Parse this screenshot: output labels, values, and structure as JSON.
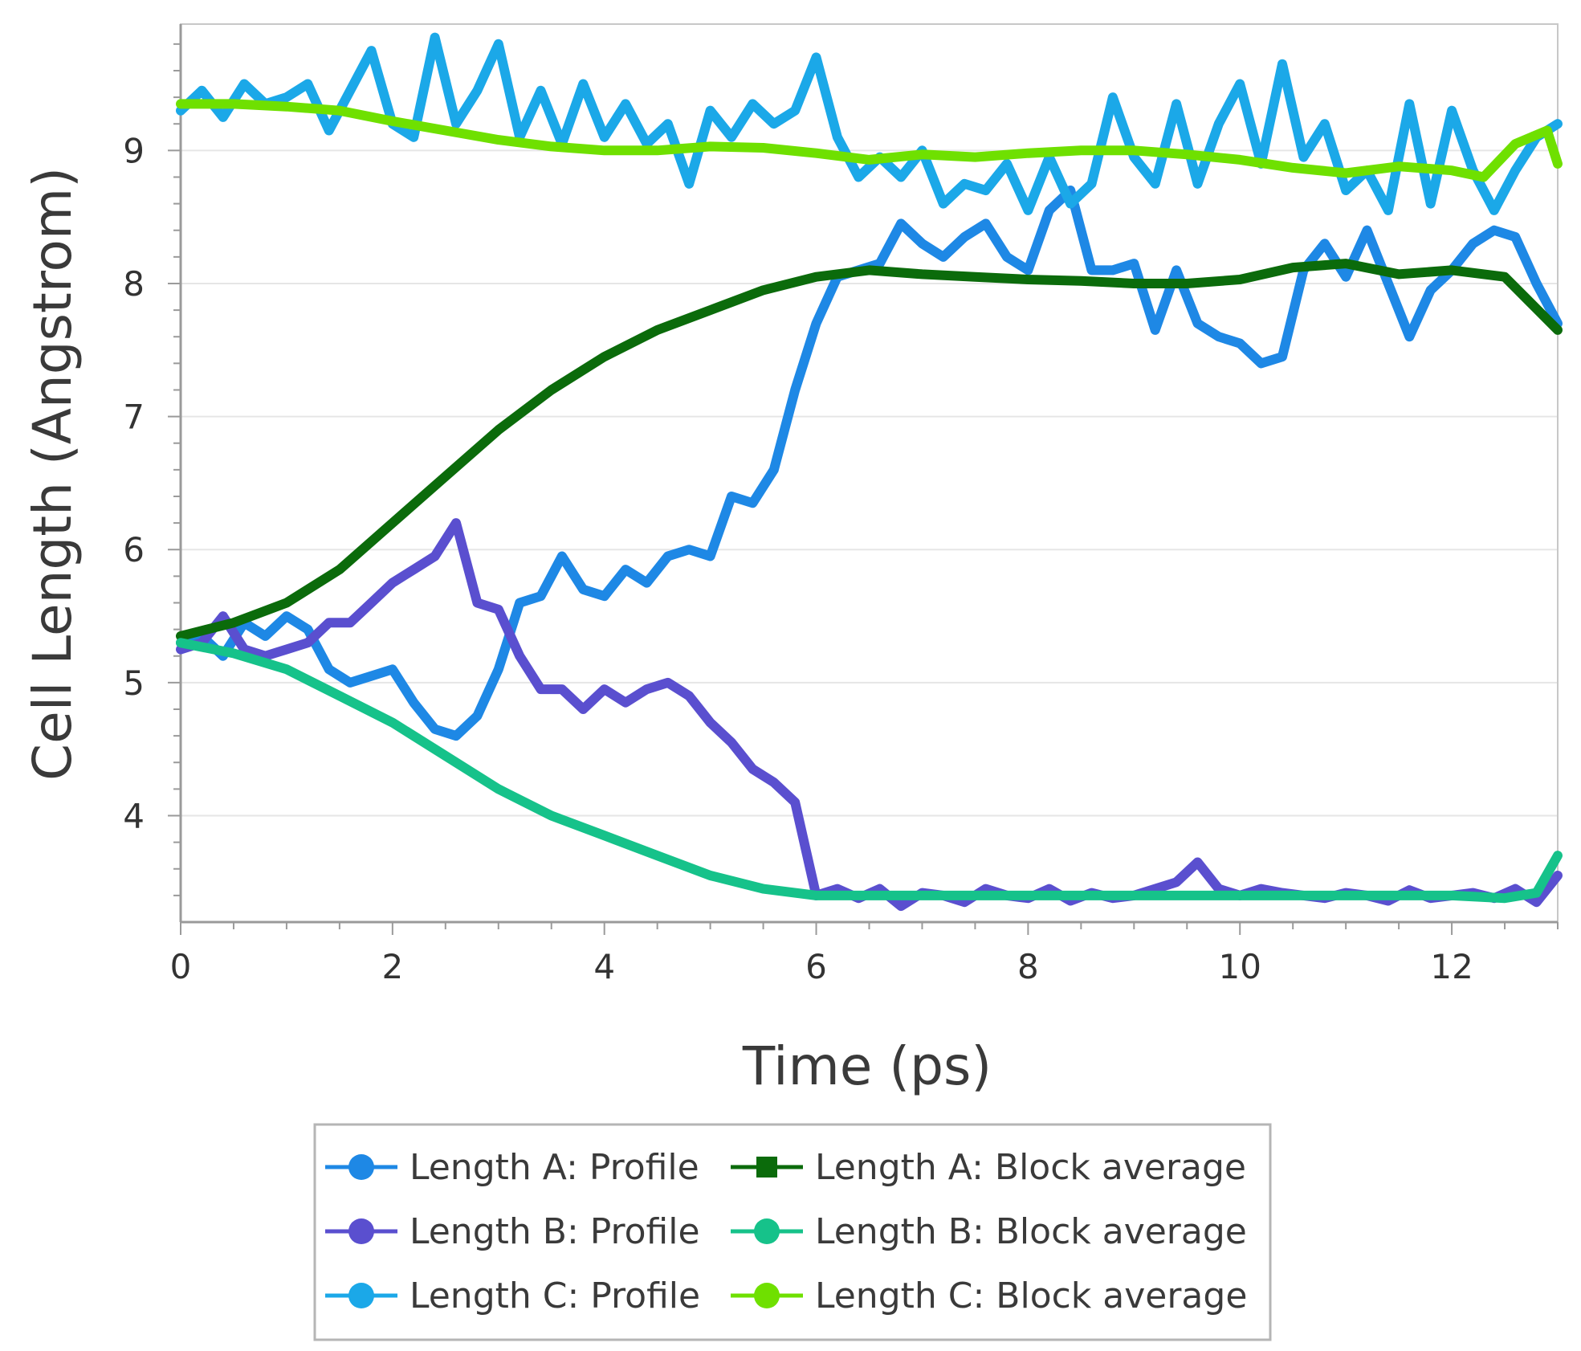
{
  "chart_data": {
    "type": "line",
    "title": "",
    "xlabel": "Time (ps)",
    "ylabel": "Cell Length (Angstrom)",
    "xlim": [
      0,
      13
    ],
    "ylim": [
      3.2,
      9.95
    ],
    "xticks": [
      0,
      2,
      4,
      6,
      8,
      10,
      12
    ],
    "yticks": [
      4,
      5,
      6,
      7,
      8,
      9
    ],
    "grid": "horizontal",
    "legend_position": "bottom",
    "series": [
      {
        "name": "Length A: Profile",
        "color": "#1e88e5",
        "marker": "circle",
        "x": [
          0,
          0.2,
          0.4,
          0.6,
          0.8,
          1.0,
          1.2,
          1.4,
          1.6,
          1.8,
          2.0,
          2.2,
          2.4,
          2.6,
          2.8,
          3.0,
          3.2,
          3.4,
          3.6,
          3.8,
          4.0,
          4.2,
          4.4,
          4.6,
          4.8,
          5.0,
          5.2,
          5.4,
          5.6,
          5.8,
          6.0,
          6.2,
          6.4,
          6.6,
          6.8,
          7.0,
          7.2,
          7.4,
          7.6,
          7.8,
          8.0,
          8.2,
          8.4,
          8.6,
          8.8,
          9.0,
          9.2,
          9.4,
          9.6,
          9.8,
          10.0,
          10.2,
          10.4,
          10.6,
          10.8,
          11.0,
          11.2,
          11.4,
          11.6,
          11.8,
          12.0,
          12.2,
          12.4,
          12.6,
          12.8,
          13.0
        ],
        "y": [
          5.3,
          5.35,
          5.2,
          5.45,
          5.35,
          5.5,
          5.4,
          5.1,
          5.0,
          5.05,
          5.1,
          4.85,
          4.65,
          4.6,
          4.75,
          5.1,
          5.6,
          5.65,
          5.95,
          5.7,
          5.65,
          5.85,
          5.75,
          5.95,
          6.0,
          5.95,
          6.4,
          6.35,
          6.6,
          7.2,
          7.7,
          8.05,
          8.1,
          8.15,
          8.45,
          8.3,
          8.2,
          8.35,
          8.45,
          8.2,
          8.1,
          8.55,
          8.7,
          8.1,
          8.1,
          8.15,
          7.65,
          8.1,
          7.7,
          7.6,
          7.55,
          7.4,
          7.45,
          8.1,
          8.3,
          8.05,
          8.4,
          8.0,
          7.6,
          7.95,
          8.1,
          8.3,
          8.4,
          8.35,
          8.0,
          7.7
        ]
      },
      {
        "name": "Length B: Profile",
        "color": "#5a4fcf",
        "marker": "circle",
        "x": [
          0,
          0.2,
          0.4,
          0.6,
          0.8,
          1.0,
          1.2,
          1.4,
          1.6,
          1.8,
          2.0,
          2.2,
          2.4,
          2.6,
          2.8,
          3.0,
          3.2,
          3.4,
          3.6,
          3.8,
          4.0,
          4.2,
          4.4,
          4.6,
          4.8,
          5.0,
          5.2,
          5.4,
          5.6,
          5.8,
          6.0,
          6.2,
          6.4,
          6.6,
          6.8,
          7.0,
          7.2,
          7.4,
          7.6,
          7.8,
          8.0,
          8.2,
          8.4,
          8.6,
          8.8,
          9.0,
          9.2,
          9.4,
          9.6,
          9.8,
          10.0,
          10.2,
          10.4,
          10.6,
          10.8,
          11.0,
          11.2,
          11.4,
          11.6,
          11.8,
          12.0,
          12.2,
          12.4,
          12.6,
          12.8,
          13.0
        ],
        "y": [
          5.25,
          5.3,
          5.5,
          5.25,
          5.2,
          5.25,
          5.3,
          5.45,
          5.45,
          5.6,
          5.75,
          5.85,
          5.95,
          6.2,
          5.6,
          5.55,
          5.2,
          4.95,
          4.95,
          4.8,
          4.95,
          4.85,
          4.95,
          5.0,
          4.9,
          4.7,
          4.55,
          4.35,
          4.25,
          4.1,
          3.4,
          3.45,
          3.38,
          3.45,
          3.32,
          3.42,
          3.4,
          3.35,
          3.45,
          3.4,
          3.38,
          3.45,
          3.36,
          3.42,
          3.38,
          3.4,
          3.45,
          3.5,
          3.65,
          3.45,
          3.4,
          3.45,
          3.42,
          3.4,
          3.38,
          3.42,
          3.4,
          3.36,
          3.44,
          3.38,
          3.4,
          3.42,
          3.38,
          3.45,
          3.35,
          3.55
        ]
      },
      {
        "name": "Length C: Profile",
        "color": "#1ba8e8",
        "marker": "circle",
        "x": [
          0,
          0.2,
          0.4,
          0.6,
          0.8,
          1.0,
          1.2,
          1.4,
          1.6,
          1.8,
          2.0,
          2.2,
          2.4,
          2.6,
          2.8,
          3.0,
          3.2,
          3.4,
          3.6,
          3.8,
          4.0,
          4.2,
          4.4,
          4.6,
          4.8,
          5.0,
          5.2,
          5.4,
          5.6,
          5.8,
          6.0,
          6.2,
          6.4,
          6.6,
          6.8,
          7.0,
          7.2,
          7.4,
          7.6,
          7.8,
          8.0,
          8.2,
          8.4,
          8.6,
          8.8,
          9.0,
          9.2,
          9.4,
          9.6,
          9.8,
          10.0,
          10.2,
          10.4,
          10.6,
          10.8,
          11.0,
          11.2,
          11.4,
          11.6,
          11.8,
          12.0,
          12.2,
          12.4,
          12.6,
          12.8,
          13.0
        ],
        "y": [
          9.3,
          9.45,
          9.25,
          9.5,
          9.35,
          9.4,
          9.5,
          9.15,
          9.45,
          9.75,
          9.2,
          9.1,
          9.85,
          9.2,
          9.45,
          9.8,
          9.1,
          9.45,
          9.05,
          9.5,
          9.1,
          9.35,
          9.05,
          9.2,
          8.75,
          9.3,
          9.1,
          9.35,
          9.2,
          9.3,
          9.7,
          9.1,
          8.8,
          8.95,
          8.8,
          9.0,
          8.6,
          8.75,
          8.7,
          8.9,
          8.55,
          8.95,
          8.6,
          8.75,
          9.4,
          8.95,
          8.75,
          9.35,
          8.75,
          9.2,
          9.5,
          8.9,
          9.65,
          8.95,
          9.2,
          8.7,
          8.85,
          8.55,
          9.35,
          8.6,
          9.3,
          8.85,
          8.55,
          8.85,
          9.1,
          9.2
        ]
      },
      {
        "name": "Length A: Block average",
        "color": "#0b6b0b",
        "marker": "square",
        "x": [
          0,
          0.5,
          1.0,
          1.5,
          2.0,
          2.5,
          3.0,
          3.5,
          4.0,
          4.5,
          5.0,
          5.5,
          6.0,
          6.5,
          7.0,
          7.5,
          8.0,
          8.5,
          9.0,
          9.5,
          10.0,
          10.5,
          11.0,
          11.5,
          12.0,
          12.5,
          13.0
        ],
        "y": [
          5.35,
          5.45,
          5.6,
          5.85,
          6.2,
          6.55,
          6.9,
          7.2,
          7.45,
          7.65,
          7.8,
          7.95,
          8.05,
          8.1,
          8.07,
          8.05,
          8.03,
          8.02,
          8.0,
          8.0,
          8.03,
          8.12,
          8.15,
          8.07,
          8.1,
          8.05,
          7.65
        ]
      },
      {
        "name": "Length B: Block average",
        "color": "#16c28a",
        "marker": "circle",
        "x": [
          0,
          0.5,
          1.0,
          1.5,
          2.0,
          2.5,
          3.0,
          3.5,
          4.0,
          4.5,
          5.0,
          5.5,
          6.0,
          6.5,
          7.0,
          7.5,
          8.0,
          8.5,
          9.0,
          9.5,
          10.0,
          10.5,
          11.0,
          11.5,
          12.0,
          12.5,
          12.8,
          13.0
        ],
        "y": [
          5.3,
          5.22,
          5.1,
          4.9,
          4.7,
          4.45,
          4.2,
          4.0,
          3.85,
          3.7,
          3.55,
          3.45,
          3.4,
          3.4,
          3.4,
          3.4,
          3.4,
          3.4,
          3.4,
          3.4,
          3.4,
          3.4,
          3.4,
          3.4,
          3.4,
          3.38,
          3.42,
          3.7
        ]
      },
      {
        "name": "Length C: Block average",
        "color": "#6fe000",
        "marker": "circle",
        "x": [
          0,
          0.5,
          1.0,
          1.5,
          2.0,
          2.5,
          3.0,
          3.5,
          4.0,
          4.5,
          5.0,
          5.5,
          6.0,
          6.5,
          7.0,
          7.5,
          8.0,
          8.5,
          9.0,
          9.5,
          10.0,
          10.5,
          11.0,
          11.5,
          12.0,
          12.3,
          12.6,
          12.9,
          13.0
        ],
        "y": [
          9.35,
          9.35,
          9.33,
          9.3,
          9.22,
          9.15,
          9.08,
          9.03,
          9.0,
          9.0,
          9.03,
          9.02,
          8.98,
          8.93,
          8.97,
          8.95,
          8.98,
          9.0,
          9.0,
          8.97,
          8.93,
          8.87,
          8.83,
          8.88,
          8.85,
          8.8,
          9.05,
          9.15,
          8.9
        ]
      }
    ]
  }
}
